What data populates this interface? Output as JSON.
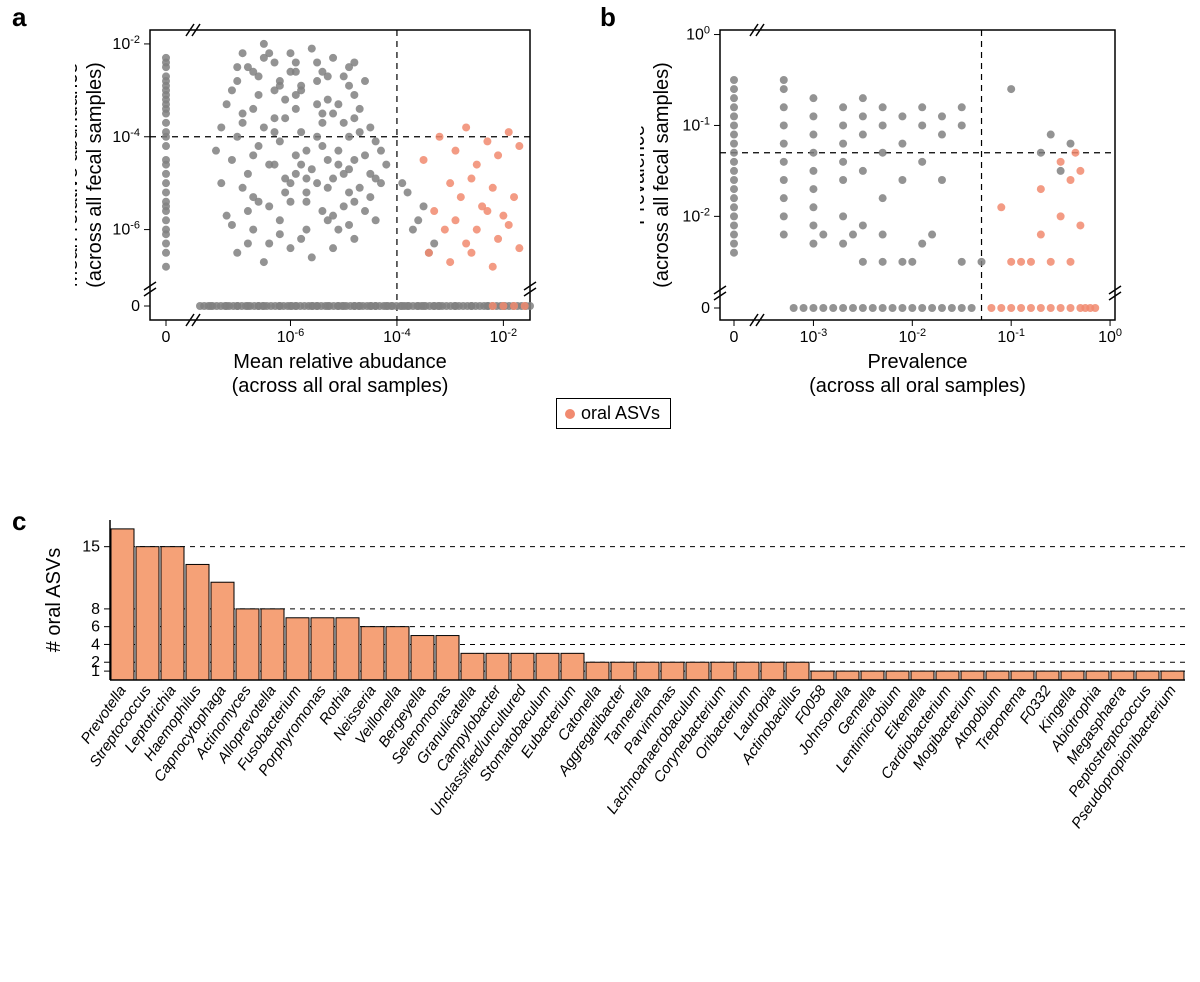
{
  "colors": {
    "background": "#ffffff",
    "gray_point": "#808080",
    "orange_point": "#f18a6f",
    "bar_fill": "#f5a177",
    "bar_stroke": "#000000",
    "axis": "#000000",
    "grid_dash": "#000000"
  },
  "panel_labels": {
    "a": "a",
    "b": "b",
    "c": "c"
  },
  "legend": {
    "label": "oral ASVs"
  },
  "panel_a": {
    "type": "scatter",
    "x_label_line1": "Mean relative abudance",
    "x_label_line2": "(across all oral samples)",
    "y_label_line1": "Mean relative abundance",
    "y_label_line2": "(across all fecal samples)",
    "x_scale": "log",
    "y_scale": "log",
    "x_ticks_log": [
      -6,
      -4,
      -2
    ],
    "y_ticks_log": [
      -6,
      -4,
      -2
    ],
    "x_zero_label": "0",
    "y_zero_label": "0",
    "x_threshold_log": -4,
    "y_threshold_log": -4,
    "marker_radius": 4,
    "marker_opacity": 0.85,
    "gray_points_log": [
      [
        -8.3,
        -4.2
      ],
      [
        -8.3,
        -3.9
      ],
      [
        -8.3,
        -3.5
      ],
      [
        -8.3,
        -3.2
      ],
      [
        -8.3,
        -3.0
      ],
      [
        -8.3,
        -2.7
      ],
      [
        -8.3,
        -5.0
      ],
      [
        -8.3,
        -5.5
      ],
      [
        -8.3,
        -6.0
      ],
      [
        -8.3,
        -6.5
      ],
      [
        -8.3,
        -2.3
      ],
      [
        -8.3,
        -4.5
      ],
      [
        -8.3,
        -4.8
      ],
      [
        -8.3,
        -5.2
      ],
      [
        -8.3,
        -5.8
      ],
      [
        -8.3,
        -3.7
      ],
      [
        -8.3,
        -3.3
      ],
      [
        -8.3,
        -2.9
      ],
      [
        -8.3,
        -2.5
      ],
      [
        -8.3,
        -6.3
      ],
      [
        -8.3,
        -4.6
      ],
      [
        -8.3,
        -5.4
      ],
      [
        -8.3,
        -3.1
      ],
      [
        -8.3,
        -2.8
      ],
      [
        -8.3,
        -6.8
      ],
      [
        -8.3,
        -4.0
      ],
      [
        -8.3,
        -3.4
      ],
      [
        -8.3,
        -5.6
      ],
      [
        -8.3,
        -6.1
      ],
      [
        -8.3,
        -2.4
      ],
      [
        -7.5,
        -8.3
      ],
      [
        -7.2,
        -8.3
      ],
      [
        -6.8,
        -8.3
      ],
      [
        -6.5,
        -8.3
      ],
      [
        -6.2,
        -8.3
      ],
      [
        -5.9,
        -8.3
      ],
      [
        -5.6,
        -8.3
      ],
      [
        -5.3,
        -8.3
      ],
      [
        -5.0,
        -8.3
      ],
      [
        -4.7,
        -8.3
      ],
      [
        -4.4,
        -8.3
      ],
      [
        -4.1,
        -8.3
      ],
      [
        -3.8,
        -8.3
      ],
      [
        -3.5,
        -8.3
      ],
      [
        -3.2,
        -8.3
      ],
      [
        -2.9,
        -8.3
      ],
      [
        -2.6,
        -8.3
      ],
      [
        -2.3,
        -8.3
      ],
      [
        -2.0,
        -8.3
      ],
      [
        -7.0,
        -8.3
      ],
      [
        -6.6,
        -8.3
      ],
      [
        -6.0,
        -8.3
      ],
      [
        -5.5,
        -8.3
      ],
      [
        -5.1,
        -8.3
      ],
      [
        -4.8,
        -8.3
      ],
      [
        -4.5,
        -8.3
      ],
      [
        -4.2,
        -8.3
      ],
      [
        -3.9,
        -8.3
      ],
      [
        -3.6,
        -8.3
      ],
      [
        -3.3,
        -8.3
      ],
      [
        -7.3,
        -5.0
      ],
      [
        -7.1,
        -4.5
      ],
      [
        -7.0,
        -4.0
      ],
      [
        -6.9,
        -3.5
      ],
      [
        -6.8,
        -4.8
      ],
      [
        -6.7,
        -5.3
      ],
      [
        -6.6,
        -4.2
      ],
      [
        -6.5,
        -3.8
      ],
      [
        -6.4,
        -5.5
      ],
      [
        -6.3,
        -4.6
      ],
      [
        -6.2,
        -4.1
      ],
      [
        -6.1,
        -3.6
      ],
      [
        -6.0,
        -5.0
      ],
      [
        -5.9,
        -4.4
      ],
      [
        -5.8,
        -3.9
      ],
      [
        -5.7,
        -5.4
      ],
      [
        -5.6,
        -4.7
      ],
      [
        -5.5,
        -4.0
      ],
      [
        -5.4,
        -3.5
      ],
      [
        -5.3,
        -5.8
      ],
      [
        -5.2,
        -4.9
      ],
      [
        -5.1,
        -4.3
      ],
      [
        -5.0,
        -3.7
      ],
      [
        -4.9,
        -5.2
      ],
      [
        -4.8,
        -4.5
      ],
      [
        -4.7,
        -3.9
      ],
      [
        -4.6,
        -5.6
      ],
      [
        -4.5,
        -4.8
      ],
      [
        -4.4,
        -4.1
      ],
      [
        -4.3,
        -5.0
      ],
      [
        -7.0,
        -2.8
      ],
      [
        -6.8,
        -2.5
      ],
      [
        -6.5,
        -2.3
      ],
      [
        -6.3,
        -3.0
      ],
      [
        -6.0,
        -2.6
      ],
      [
        -5.8,
        -2.9
      ],
      [
        -5.5,
        -2.4
      ],
      [
        -5.3,
        -3.2
      ],
      [
        -5.0,
        -2.7
      ],
      [
        -4.8,
        -3.1
      ],
      [
        -7.2,
        -3.3
      ],
      [
        -6.9,
        -3.7
      ],
      [
        -6.6,
        -3.1
      ],
      [
        -6.4,
        -4.6
      ],
      [
        -6.1,
        -5.2
      ],
      [
        -5.9,
        -3.4
      ],
      [
        -5.7,
        -4.9
      ],
      [
        -5.4,
        -5.6
      ],
      [
        -5.1,
        -3.3
      ],
      [
        -4.9,
        -4.0
      ],
      [
        -7.4,
        -4.3
      ],
      [
        -7.2,
        -5.7
      ],
      [
        -6.7,
        -6.0
      ],
      [
        -6.2,
        -5.8
      ],
      [
        -5.8,
        -6.2
      ],
      [
        -5.4,
        -4.2
      ],
      [
        -5.0,
        -5.5
      ],
      [
        -4.6,
        -4.4
      ],
      [
        -4.4,
        -5.8
      ],
      [
        -4.2,
        -4.6
      ],
      [
        -6.9,
        -2.2
      ],
      [
        -6.5,
        -2.0
      ],
      [
        -6.0,
        -2.2
      ],
      [
        -5.6,
        -2.1
      ],
      [
        -5.2,
        -2.3
      ],
      [
        -4.9,
        -2.5
      ],
      [
        -4.6,
        -2.8
      ],
      [
        -6.3,
        -2.4
      ],
      [
        -5.9,
        -2.6
      ],
      [
        -5.5,
        -2.8
      ],
      [
        -7.1,
        -5.9
      ],
      [
        -6.8,
        -5.6
      ],
      [
        -6.4,
        -6.3
      ],
      [
        -6.0,
        -5.4
      ],
      [
        -5.7,
        -6.0
      ],
      [
        -5.3,
        -5.1
      ],
      [
        -4.9,
        -5.9
      ],
      [
        -4.5,
        -5.3
      ],
      [
        -4.8,
        -6.2
      ],
      [
        -5.2,
        -6.4
      ],
      [
        -7.3,
        -3.8
      ],
      [
        -6.7,
        -4.4
      ],
      [
        -6.1,
        -3.2
      ],
      [
        -5.8,
        -4.6
      ],
      [
        -5.4,
        -3.7
      ],
      [
        -5.0,
        -4.8
      ],
      [
        -4.7,
        -3.4
      ],
      [
        -4.4,
        -4.9
      ],
      [
        -6.9,
        -5.1
      ],
      [
        -6.3,
        -3.9
      ],
      [
        -7.0,
        -6.5
      ],
      [
        -6.5,
        -6.7
      ],
      [
        -6.0,
        -6.4
      ],
      [
        -5.6,
        -6.6
      ],
      [
        -5.2,
        -5.7
      ],
      [
        -4.8,
        -5.4
      ],
      [
        -6.8,
        -6.3
      ],
      [
        -6.2,
        -6.1
      ],
      [
        -5.7,
        -5.2
      ],
      [
        -5.1,
        -6.0
      ],
      [
        -6.6,
        -2.7
      ],
      [
        -6.2,
        -2.9
      ],
      [
        -5.9,
        -3.1
      ],
      [
        -5.5,
        -3.3
      ],
      [
        -5.2,
        -3.5
      ],
      [
        -4.8,
        -3.6
      ],
      [
        -4.5,
        -3.8
      ],
      [
        -7.1,
        -3.0
      ],
      [
        -6.7,
        -3.4
      ],
      [
        -6.3,
        -3.6
      ],
      [
        -5.9,
        -4.8
      ],
      [
        -5.5,
        -5.0
      ],
      [
        -5.1,
        -4.6
      ],
      [
        -4.7,
        -5.1
      ],
      [
        -4.3,
        -4.3
      ],
      [
        -6.6,
        -5.4
      ],
      [
        -6.1,
        -4.9
      ],
      [
        -5.7,
        -4.3
      ],
      [
        -5.3,
        -4.5
      ],
      [
        -4.9,
        -4.7
      ],
      [
        -6.4,
        -2.2
      ],
      [
        -5.9,
        -2.4
      ],
      [
        -5.4,
        -2.6
      ],
      [
        -4.9,
        -2.9
      ],
      [
        -6.7,
        -2.6
      ],
      [
        -6.2,
        -2.8
      ],
      [
        -5.8,
        -3.0
      ],
      [
        -5.3,
        -2.7
      ],
      [
        -4.8,
        -2.4
      ],
      [
        -7.0,
        -2.5
      ],
      [
        -3.7,
        -6.0
      ],
      [
        -3.5,
        -5.5
      ],
      [
        -3.3,
        -6.3
      ],
      [
        -3.8,
        -5.2
      ],
      [
        -3.6,
        -5.8
      ],
      [
        -3.4,
        -6.5
      ],
      [
        -3.9,
        -5.0
      ]
    ],
    "orange_points_log": [
      [
        -3.5,
        -4.5
      ],
      [
        -3.2,
        -4.0
      ],
      [
        -2.9,
        -4.3
      ],
      [
        -2.7,
        -3.8
      ],
      [
        -2.5,
        -4.6
      ],
      [
        -2.3,
        -4.1
      ],
      [
        -2.1,
        -4.4
      ],
      [
        -1.9,
        -3.9
      ],
      [
        -1.7,
        -4.2
      ],
      [
        -3.0,
        -5.0
      ],
      [
        -2.8,
        -5.3
      ],
      [
        -2.6,
        -4.9
      ],
      [
        -2.4,
        -5.5
      ],
      [
        -2.2,
        -5.1
      ],
      [
        -2.0,
        -5.7
      ],
      [
        -1.8,
        -5.3
      ],
      [
        -3.3,
        -5.6
      ],
      [
        -3.1,
        -6.0
      ],
      [
        -2.9,
        -5.8
      ],
      [
        -2.7,
        -6.3
      ],
      [
        -2.5,
        -6.0
      ],
      [
        -2.3,
        -5.6
      ],
      [
        -2.1,
        -6.2
      ],
      [
        -1.9,
        -5.9
      ],
      [
        -1.7,
        -6.4
      ],
      [
        -3.4,
        -6.5
      ],
      [
        -3.0,
        -6.7
      ],
      [
        -2.6,
        -6.5
      ],
      [
        -2.2,
        -6.8
      ],
      [
        -1.8,
        -8.3
      ],
      [
        -1.6,
        -8.3
      ],
      [
        -2.0,
        -8.3
      ],
      [
        -2.2,
        -8.3
      ]
    ],
    "gray_on_axis_many": 80
  },
  "panel_b": {
    "type": "scatter",
    "x_label_line1": "Prevalence",
    "x_label_line2": "(across all oral samples)",
    "y_label_line1": "Prevalence",
    "y_label_line2": "(across all fecal samples)",
    "x_scale": "log",
    "y_scale": "log",
    "x_ticks_log": [
      -3,
      -2,
      -1,
      0
    ],
    "y_ticks_log": [
      -2,
      -1,
      0
    ],
    "x_zero_label": "0",
    "y_zero_label": "0",
    "x_threshold_log": -1.3,
    "y_threshold_log": -1.3,
    "marker_radius": 4,
    "marker_opacity": 0.85,
    "gray_points_log": [
      [
        -4.3,
        -0.5
      ],
      [
        -4.3,
        -0.7
      ],
      [
        -4.3,
        -0.9
      ],
      [
        -4.3,
        -1.1
      ],
      [
        -4.3,
        -1.3
      ],
      [
        -4.3,
        -1.5
      ],
      [
        -4.3,
        -1.7
      ],
      [
        -4.3,
        -1.9
      ],
      [
        -4.3,
        -2.1
      ],
      [
        -4.3,
        -2.3
      ],
      [
        -4.3,
        -0.6
      ],
      [
        -4.3,
        -0.8
      ],
      [
        -4.3,
        -1.0
      ],
      [
        -4.3,
        -1.2
      ],
      [
        -4.3,
        -1.4
      ],
      [
        -4.3,
        -1.6
      ],
      [
        -4.3,
        -1.8
      ],
      [
        -4.3,
        -2.0
      ],
      [
        -4.3,
        -2.2
      ],
      [
        -4.3,
        -2.4
      ],
      [
        -3.3,
        -0.6
      ],
      [
        -3.3,
        -0.8
      ],
      [
        -3.3,
        -1.0
      ],
      [
        -3.3,
        -1.2
      ],
      [
        -3.3,
        -1.4
      ],
      [
        -3.3,
        -1.6
      ],
      [
        -3.3,
        -1.8
      ],
      [
        -3.3,
        -2.0
      ],
      [
        -3.3,
        -2.2
      ],
      [
        -3.3,
        -0.5
      ],
      [
        -3.0,
        -0.7
      ],
      [
        -3.0,
        -0.9
      ],
      [
        -3.0,
        -1.1
      ],
      [
        -3.0,
        -1.3
      ],
      [
        -3.0,
        -1.5
      ],
      [
        -3.0,
        -1.7
      ],
      [
        -3.0,
        -1.9
      ],
      [
        -3.0,
        -2.1
      ],
      [
        -3.0,
        -2.3
      ],
      [
        -2.7,
        -0.8
      ],
      [
        -2.7,
        -1.0
      ],
      [
        -2.7,
        -1.2
      ],
      [
        -2.7,
        -1.4
      ],
      [
        -2.7,
        -1.6
      ],
      [
        -2.7,
        -2.0
      ],
      [
        -2.7,
        -2.3
      ],
      [
        -2.5,
        -0.7
      ],
      [
        -2.5,
        -0.9
      ],
      [
        -2.5,
        -1.1
      ],
      [
        -2.5,
        -1.5
      ],
      [
        -2.5,
        -2.1
      ],
      [
        -2.5,
        -2.5
      ],
      [
        -2.3,
        -0.8
      ],
      [
        -2.3,
        -1.0
      ],
      [
        -2.3,
        -1.3
      ],
      [
        -2.3,
        -1.8
      ],
      [
        -2.3,
        -2.2
      ],
      [
        -2.1,
        -0.9
      ],
      [
        -2.1,
        -1.2
      ],
      [
        -2.1,
        -1.6
      ],
      [
        -2.1,
        -2.5
      ],
      [
        -1.9,
        -0.8
      ],
      [
        -1.9,
        -1.0
      ],
      [
        -1.9,
        -1.4
      ],
      [
        -1.9,
        -2.3
      ],
      [
        -1.7,
        -0.9
      ],
      [
        -1.7,
        -1.1
      ],
      [
        -1.7,
        -1.6
      ],
      [
        -1.5,
        -0.8
      ],
      [
        -1.5,
        -1.0
      ],
      [
        -1.0,
        -0.6
      ],
      [
        -3.1,
        -4.3
      ],
      [
        -2.9,
        -4.3
      ],
      [
        -2.7,
        -4.3
      ],
      [
        -2.5,
        -4.3
      ],
      [
        -2.3,
        -4.3
      ],
      [
        -2.1,
        -4.3
      ],
      [
        -1.9,
        -4.3
      ],
      [
        -1.7,
        -4.3
      ],
      [
        -1.5,
        -4.3
      ],
      [
        -1.4,
        -4.3
      ],
      [
        -3.2,
        -4.3
      ],
      [
        -3.0,
        -4.3
      ],
      [
        -2.8,
        -4.3
      ],
      [
        -2.6,
        -4.3
      ],
      [
        -2.4,
        -4.3
      ],
      [
        -2.2,
        -4.3
      ],
      [
        -2.0,
        -4.3
      ],
      [
        -1.8,
        -4.3
      ],
      [
        -1.6,
        -4.3
      ],
      [
        -2.9,
        -2.2
      ],
      [
        -2.6,
        -2.2
      ],
      [
        -2.3,
        -2.5
      ],
      [
        -2.0,
        -2.5
      ],
      [
        -1.8,
        -2.2
      ],
      [
        -1.5,
        -2.5
      ],
      [
        -1.3,
        -2.5
      ],
      [
        -0.7,
        -1.3
      ],
      [
        -0.6,
        -1.1
      ],
      [
        -0.5,
        -1.5
      ],
      [
        -0.4,
        -1.2
      ]
    ],
    "orange_points_log": [
      [
        -1.1,
        -1.9
      ],
      [
        -1.0,
        -2.5
      ],
      [
        -0.9,
        -2.5
      ],
      [
        -0.8,
        -2.5
      ],
      [
        -0.6,
        -2.5
      ],
      [
        -0.4,
        -2.5
      ],
      [
        -0.7,
        -1.7
      ],
      [
        -0.5,
        -1.4
      ],
      [
        -0.4,
        -1.6
      ],
      [
        -0.3,
        -1.5
      ],
      [
        -0.35,
        -1.3
      ],
      [
        -0.7,
        -2.2
      ],
      [
        -0.5,
        -2.0
      ],
      [
        -0.3,
        -2.1
      ],
      [
        -1.2,
        -4.3
      ],
      [
        -1.1,
        -4.3
      ],
      [
        -1.0,
        -4.3
      ],
      [
        -0.9,
        -4.3
      ],
      [
        -0.8,
        -4.3
      ],
      [
        -0.7,
        -4.3
      ],
      [
        -0.6,
        -4.3
      ],
      [
        -0.5,
        -4.3
      ],
      [
        -0.4,
        -4.3
      ],
      [
        -0.3,
        -4.3
      ],
      [
        -0.25,
        -4.3
      ],
      [
        -0.2,
        -4.3
      ],
      [
        -0.15,
        -4.3
      ]
    ]
  },
  "panel_c": {
    "type": "bar",
    "y_label": "# oral ASVs",
    "y_ticks": [
      1,
      2,
      4,
      6,
      8,
      15
    ],
    "y_max": 18,
    "bar_fill": "#f5a177",
    "bar_stroke": "#000000",
    "bar_stroke_width": 1,
    "grid_dashed": true,
    "categories": [
      "Prevotella",
      "Streptococcus",
      "Leptotrichia",
      "Haemophilus",
      "Capnocytophaga",
      "Actinomyces",
      "Alloprevotella",
      "Fusobacterium",
      "Porphyromonas",
      "Rothia",
      "Neisseria",
      "Veillonella",
      "Bergeyella",
      "Selenomonas",
      "Granulicatella",
      "Campylobacter",
      "Unclassified/uncultured",
      "Stomatobaculum",
      "Eubacterium",
      "Catonella",
      "Aggregatibacter",
      "Tannerella",
      "Parvimonas",
      "Lachnoanaerobaculum",
      "Corynebacterium",
      "Oribacterium",
      "Lautropia",
      "Actinobacillus",
      "F0058",
      "Johnsonella",
      "Gemella",
      "Lentimicrobium",
      "Eikenella",
      "Cardiobacterium",
      "Mogibacterium",
      "Atopobium",
      "Treponema",
      "F0332",
      "Kingella",
      "Abiotrophia",
      "Megasphaera",
      "Peptostreptococcus",
      "Pseudopropionibacterium"
    ],
    "values": [
      17,
      15,
      15,
      13,
      11,
      8,
      8,
      7,
      7,
      7,
      6,
      6,
      5,
      5,
      3,
      3,
      3,
      3,
      3,
      2,
      2,
      2,
      2,
      2,
      2,
      2,
      2,
      2,
      1,
      1,
      1,
      1,
      1,
      1,
      1,
      1,
      1,
      1,
      1,
      1,
      1,
      1,
      1
    ],
    "label_fontsize": 15,
    "label_rotation_deg": -55
  }
}
